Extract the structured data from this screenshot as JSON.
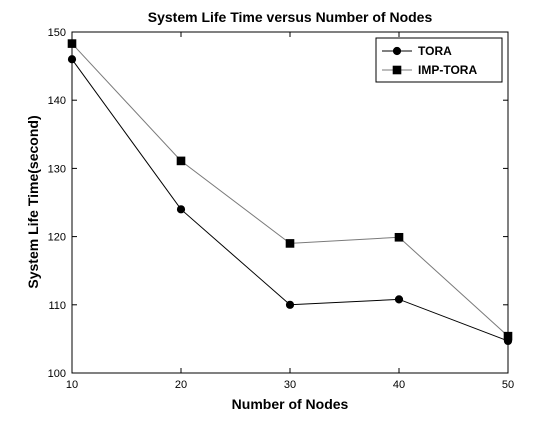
{
  "chart_data": {
    "type": "line",
    "title": "System Life Time versus Number of Nodes",
    "xlabel": "Number of Nodes",
    "ylabel": "System Life Time(second)",
    "x": [
      10,
      20,
      30,
      40,
      50
    ],
    "xlim": [
      10,
      50
    ],
    "ylim": [
      100,
      150
    ],
    "xticks": [
      "10",
      "20",
      "30",
      "40",
      "50"
    ],
    "yticks": [
      "100",
      "110",
      "120",
      "130",
      "140",
      "150"
    ],
    "grid": false,
    "legend_position": "top-right",
    "series": [
      {
        "name": "TORA",
        "marker": "circle",
        "color": "#000000",
        "values": [
          146,
          124,
          110,
          110.8,
          104.7
        ]
      },
      {
        "name": "IMP-TORA",
        "marker": "square",
        "color": "#7a7a7a",
        "values": [
          148.3,
          131.1,
          119,
          119.9,
          105.4
        ]
      }
    ]
  }
}
